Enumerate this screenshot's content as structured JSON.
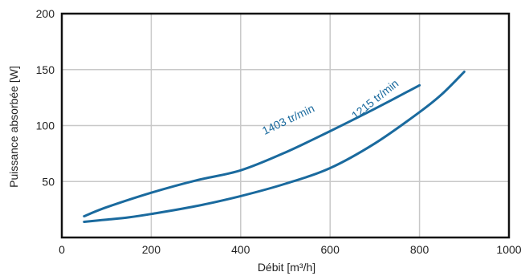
{
  "chart_data": {
    "type": "line",
    "title": "",
    "xlabel": "Débit [m³/h]",
    "ylabel": "Puissance absorbée [W]",
    "xlim": [
      0,
      1000
    ],
    "ylim": [
      0,
      200
    ],
    "x_ticks": [
      0,
      200,
      400,
      600,
      800,
      1000
    ],
    "y_ticks": [
      50,
      100,
      150,
      200
    ],
    "grid": true,
    "colors": {
      "line": "#1a6a9e",
      "grid": "#c8c8c8",
      "frame": "#111111"
    },
    "series": [
      {
        "name": "1403 tr/min",
        "x": [
          50,
          100,
          200,
          300,
          400,
          500,
          600,
          700,
          800
        ],
        "y": [
          19,
          27,
          40,
          51,
          60,
          76,
          95,
          115,
          136
        ]
      },
      {
        "name": "1215 tr/min",
        "x": [
          50,
          100,
          150,
          200,
          300,
          400,
          500,
          600,
          700,
          800,
          850,
          900
        ],
        "y": [
          14,
          16,
          18,
          21,
          28,
          37,
          48,
          62,
          84,
          112,
          128,
          148
        ]
      }
    ]
  }
}
